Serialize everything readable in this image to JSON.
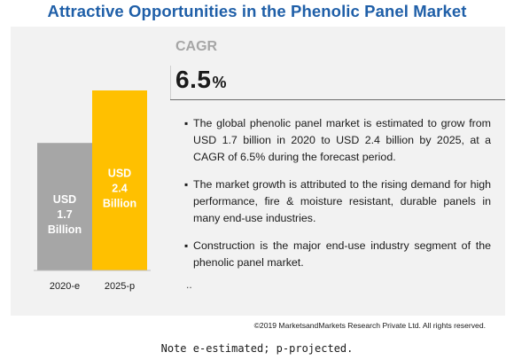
{
  "header": {
    "title": "Attractive Opportunities in the Phenolic Panel Market"
  },
  "cagr": {
    "label": "CAGR",
    "value": "6.5",
    "unit": "%"
  },
  "bullets": [
    "The global phenolic panel market is estimated to grow from  USD 1.7 billion in 2020 to USD 2.4 billion by 2025, at a CAGR of 6.5% during the forecast period.",
    "The market growth is attributed to the rising demand for high performance, fire & moisture resistant, durable panels in many end-use industries.",
    "Construction is the major end-use industry segment of the phenolic panel market."
  ],
  "bullet_symbol": "▪",
  "stray_mark": "..",
  "footer": {
    "copyright": "©2019 MarketsandMarkets  Research Private Ltd. All rights reserved.",
    "note": "Note e-estimated; p-projected."
  },
  "chart_data": {
    "type": "bar",
    "categories": [
      "2020-e",
      "2025-p"
    ],
    "values": [
      1.7,
      2.4
    ],
    "bar_labels": [
      [
        "USD",
        "1.7",
        "Billion"
      ],
      [
        "USD",
        "2.4",
        "Billion"
      ]
    ],
    "colors": [
      "#a6a6a6",
      "#ffc000"
    ],
    "unit": "USD Billion",
    "ylim": [
      0,
      2.4
    ],
    "grid": false,
    "legend": "none"
  }
}
